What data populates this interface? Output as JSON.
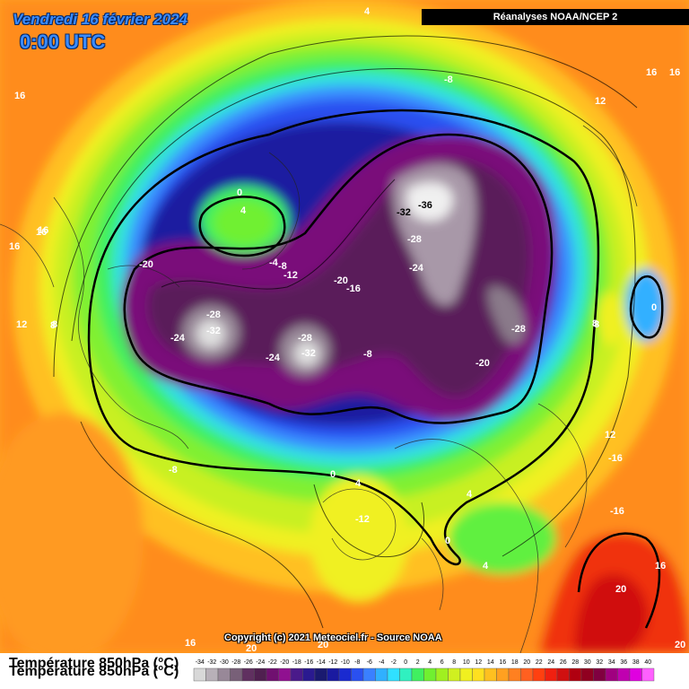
{
  "header": {
    "date": "Vendredi 16 février 2024",
    "time": "0:00 UTC",
    "source": "Réanalyses NOAA/NCEP 2"
  },
  "copyright": "Copyright (c) 2021 Meteociel.fr - Source NOAA",
  "footer": {
    "parameter": "Température 850hPa (°C)"
  },
  "legend": {
    "ticks": [
      "-34",
      "-32",
      "-30",
      "-28",
      "-26",
      "-24",
      "-22",
      "-20",
      "-18",
      "-16",
      "-14",
      "-12",
      "-10",
      "-8",
      "-6",
      "-4",
      "-2",
      "0",
      "2",
      "4",
      "6",
      "8",
      "10",
      "12",
      "14",
      "16",
      "18",
      "20",
      "22",
      "24",
      "26",
      "28",
      "30",
      "32",
      "34",
      "36",
      "38",
      "40"
    ],
    "colors": [
      "#d8d8d8",
      "#b8b0b8",
      "#988898",
      "#786078",
      "#603060",
      "#502050",
      "#701070",
      "#901090",
      "#4a1a8a",
      "#2a1a90",
      "#1a1a70",
      "#1a1aa0",
      "#1a2ad0",
      "#2a50f0",
      "#3a80ff",
      "#30b0ff",
      "#30e0ff",
      "#30f0c0",
      "#40f060",
      "#70f030",
      "#a0f020",
      "#d0f020",
      "#f0f020",
      "#ffe020",
      "#ffc020",
      "#ffa020",
      "#ff8020",
      "#ff6020",
      "#ff4010",
      "#f02010",
      "#d01010",
      "#b00010",
      "#900020",
      "#800040",
      "#a00080",
      "#c000b0",
      "#e000e0",
      "#ff60ff"
    ]
  },
  "map_labels": [
    "4",
    "8",
    "12",
    "16",
    "16",
    "16",
    "16",
    "12",
    "8",
    "-8",
    "0",
    "4",
    "-4",
    "-8",
    "-12",
    "-20",
    "-28",
    "-32",
    "-24",
    "-28",
    "-32",
    "-24",
    "-8",
    "-32",
    "-36",
    "-28",
    "-24",
    "-20",
    "-16",
    "-28",
    "-20",
    "0",
    "8",
    "0",
    "-8",
    "4",
    "12",
    "-16",
    "4",
    "-12",
    "0",
    "4",
    "-16",
    "20",
    "16",
    "20",
    "16",
    "20",
    "20",
    "16",
    "16",
    "8"
  ]
}
